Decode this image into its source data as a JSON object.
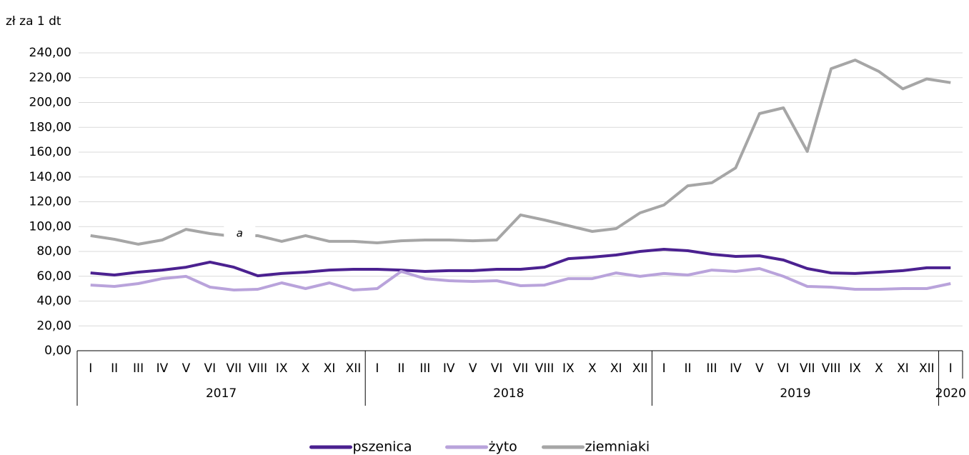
{
  "chart_data": {
    "type": "line",
    "y_axis_label": "zł za 1 dt",
    "categories": [
      "I",
      "II",
      "III",
      "IV",
      "V",
      "VI",
      "VII",
      "VIII",
      "IX",
      "X",
      "XI",
      "XII",
      "I",
      "II",
      "III",
      "IV",
      "V",
      "VI",
      "VII",
      "VIII",
      "IX",
      "X",
      "XI",
      "XII",
      "I",
      "II",
      "III",
      "IV",
      "V",
      "VI",
      "VII",
      "VIII",
      "IX",
      "X",
      "XI",
      "XII",
      "I"
    ],
    "category_groups": [
      "2017",
      "2018",
      "2019",
      "2020"
    ],
    "series": [
      {
        "name": "pszenica",
        "color": "#4b2190",
        "values": [
          62.7,
          61.0,
          63.3,
          65.0,
          67.3,
          71.4,
          67.3,
          60.4,
          62.2,
          63.3,
          65.0,
          65.6,
          65.6,
          65.0,
          63.9,
          64.5,
          64.5,
          65.6,
          65.6,
          67.3,
          74.2,
          75.4,
          77.1,
          80.0,
          81.7,
          80.6,
          77.7,
          76.0,
          76.5,
          73.1,
          66.2,
          62.7,
          62.2,
          63.3,
          64.5,
          66.8,
          66.8
        ]
      },
      {
        "name": "żyto",
        "color": "#b9a3db",
        "values": [
          52.9,
          51.8,
          54.1,
          58.1,
          59.9,
          51.2,
          48.9,
          49.5,
          54.7,
          50.1,
          54.7,
          48.9,
          50.1,
          63.9,
          58.1,
          56.4,
          55.8,
          56.4,
          52.4,
          52.9,
          58.1,
          58.1,
          62.7,
          59.9,
          62.2,
          61.0,
          65.0,
          63.9,
          66.2,
          59.9,
          51.8,
          51.2,
          49.5,
          49.5,
          50.1,
          50.1,
          54.1
        ]
      },
      {
        "name": "ziemniaki",
        "color": "#a6a6a6",
        "values": [
          92.7,
          89.8,
          85.8,
          89.2,
          97.8,
          94.4,
          92.1,
          92.7,
          88.1,
          92.7,
          88.1,
          88.1,
          86.9,
          88.6,
          89.2,
          89.2,
          88.6,
          89.2,
          109.4,
          105.3,
          100.7,
          96.1,
          98.4,
          111.1,
          117.4,
          132.9,
          135.3,
          147.3,
          191.1,
          195.7,
          160.6,
          227.3,
          234.2,
          225.0,
          211.0,
          219.0,
          216.0
        ]
      }
    ],
    "annotations": [
      {
        "text": "a"
      }
    ],
    "ylim": [
      0,
      240
    ],
    "yticks": [
      {
        "value": 0,
        "label": "0,00"
      },
      {
        "value": 20,
        "label": "20,00"
      },
      {
        "value": 40,
        "label": "40,00"
      },
      {
        "value": 60,
        "label": "60,00"
      },
      {
        "value": 80,
        "label": "80,00"
      },
      {
        "value": 100,
        "label": "100,00"
      },
      {
        "value": 120,
        "label": "120,00"
      },
      {
        "value": 140,
        "label": "140,00"
      },
      {
        "value": 160,
        "label": "160,00"
      },
      {
        "value": 180,
        "label": "180,00"
      },
      {
        "value": 200,
        "label": "200,00"
      },
      {
        "value": 220,
        "label": "220,00"
      },
      {
        "value": 240,
        "label": "240,00"
      }
    ],
    "grid": true,
    "legend": "bottom"
  }
}
